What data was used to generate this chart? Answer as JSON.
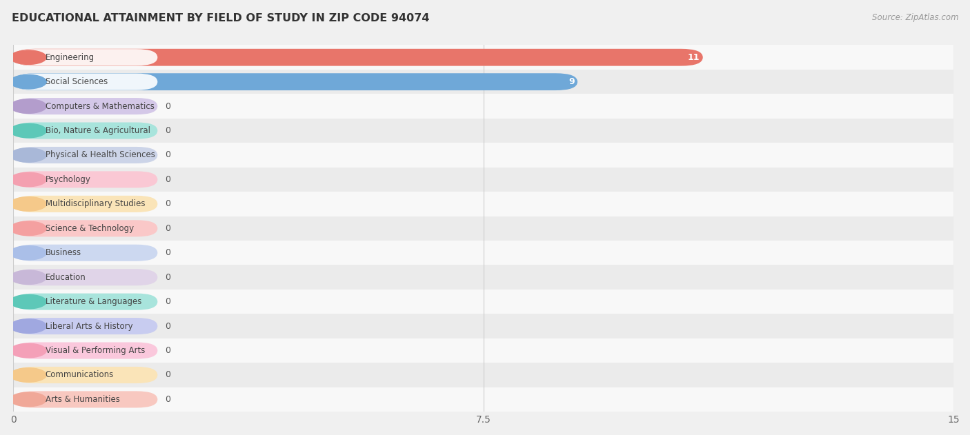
{
  "title": "EDUCATIONAL ATTAINMENT BY FIELD OF STUDY IN ZIP CODE 94074",
  "source": "Source: ZipAtlas.com",
  "categories": [
    "Engineering",
    "Social Sciences",
    "Computers & Mathematics",
    "Bio, Nature & Agricultural",
    "Physical & Health Sciences",
    "Psychology",
    "Multidisciplinary Studies",
    "Science & Technology",
    "Business",
    "Education",
    "Literature & Languages",
    "Liberal Arts & History",
    "Visual & Performing Arts",
    "Communications",
    "Arts & Humanities"
  ],
  "values": [
    11,
    9,
    0,
    0,
    0,
    0,
    0,
    0,
    0,
    0,
    0,
    0,
    0,
    0,
    0
  ],
  "bar_colors": [
    "#e8756a",
    "#6fa8d8",
    "#b39dcc",
    "#5dc8b8",
    "#a9b8d8",
    "#f4a0b0",
    "#f5c98a",
    "#f4a0a0",
    "#aabfe8",
    "#c8b8d8",
    "#5dc8b8",
    "#a0a8e0",
    "#f4a0b8",
    "#f5c98a",
    "#f0a898"
  ],
  "bar_colors_light": [
    "#f0a098",
    "#aacde8",
    "#d4c8e8",
    "#a8e4dc",
    "#ccd4e8",
    "#fac8d4",
    "#fae4b8",
    "#fac8c8",
    "#ccd8f0",
    "#e0d4e8",
    "#a8e4dc",
    "#c8ccf0",
    "#fac8dc",
    "#fae4b8",
    "#f8c8c0"
  ],
  "xlim": [
    0,
    15
  ],
  "xticks": [
    0,
    7.5,
    15
  ],
  "background_color": "#f0f0f0",
  "row_bg_even": "#f8f8f8",
  "row_bg_odd": "#ebebeb",
  "text_color": "#444444",
  "zero_bar_width": 2.3
}
